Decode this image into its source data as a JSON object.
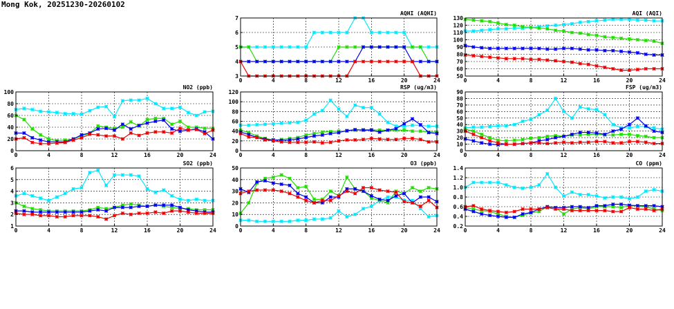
{
  "page": {
    "title": "Mong Kok, 20251230-20260102"
  },
  "colors": {
    "cyan": "#00e8ff",
    "green": "#22dd00",
    "blue": "#0000ee",
    "red": "#ee0000"
  },
  "chart_data": [
    {
      "id": "aqhi",
      "type": "line",
      "title": "AQHI (AQHI)",
      "xticks": [
        "0",
        "4",
        "8",
        "12",
        "16",
        "20",
        "24"
      ],
      "xlim": [
        0,
        24
      ],
      "yticks": [
        "3",
        "4",
        "5",
        "6",
        "7"
      ],
      "ylim": [
        3,
        7
      ],
      "grid": true,
      "series": [
        {
          "color": "cyan",
          "values": [
            5,
            5,
            5,
            5,
            5,
            5,
            5,
            5,
            5,
            6,
            6,
            6,
            6,
            6,
            7,
            7,
            6,
            6,
            6,
            6,
            6,
            5,
            5,
            5,
            5
          ]
        },
        {
          "color": "green",
          "values": [
            5,
            5,
            4,
            4,
            4,
            4,
            4,
            4,
            4,
            4,
            4,
            4,
            5,
            5,
            5,
            5,
            5,
            5,
            5,
            5,
            5,
            5,
            5,
            4,
            4
          ]
        },
        {
          "color": "blue",
          "values": [
            4,
            4,
            4,
            4,
            4,
            4,
            4,
            4,
            4,
            4,
            4,
            4,
            4,
            4,
            4,
            5,
            5,
            5,
            5,
            5,
            5,
            4,
            4,
            4,
            4
          ]
        },
        {
          "color": "red",
          "values": [
            4,
            3,
            3,
            3,
            3,
            3,
            3,
            3,
            3,
            3,
            3,
            3,
            3,
            3,
            4,
            4,
            4,
            4,
            4,
            4,
            4,
            4,
            3,
            3,
            3
          ]
        }
      ]
    },
    {
      "id": "aqi",
      "type": "line",
      "title": "AQI (AQI)",
      "xticks": [
        "0",
        "4",
        "8",
        "12",
        "16",
        "20",
        "24"
      ],
      "xlim": [
        0,
        24
      ],
      "yticks": [
        "50",
        "60",
        "70",
        "80",
        "90",
        "100",
        "110",
        "120",
        "130"
      ],
      "ylim": [
        50,
        130
      ],
      "grid": true,
      "series": [
        {
          "color": "cyan",
          "values": [
            112,
            112,
            113,
            114,
            115,
            115,
            116,
            116,
            117,
            118,
            119,
            120,
            121,
            122,
            124,
            125,
            126,
            127,
            128,
            128,
            128,
            127,
            127,
            126,
            126
          ]
        },
        {
          "color": "green",
          "values": [
            128,
            127,
            126,
            125,
            123,
            121,
            120,
            118,
            117,
            116,
            115,
            113,
            112,
            110,
            109,
            107,
            106,
            104,
            103,
            102,
            101,
            100,
            99,
            98,
            95
          ]
        },
        {
          "color": "blue",
          "values": [
            92,
            90,
            89,
            88,
            88,
            88,
            88,
            88,
            88,
            88,
            87,
            87,
            88,
            88,
            87,
            86,
            86,
            85,
            85,
            84,
            83,
            82,
            80,
            79,
            79
          ]
        },
        {
          "color": "red",
          "values": [
            79,
            78,
            77,
            76,
            75,
            74,
            74,
            74,
            73,
            73,
            72,
            71,
            70,
            69,
            67,
            66,
            64,
            62,
            60,
            58,
            58,
            59,
            60,
            60,
            60
          ]
        }
      ]
    },
    {
      "id": "no2",
      "type": "line",
      "title": "NO2 (ppb)",
      "xticks": [
        "0",
        "4",
        "8",
        "12",
        "16",
        "20",
        "24"
      ],
      "xlim": [
        0,
        24
      ],
      "yticks": [
        "0",
        "20",
        "40",
        "60",
        "80",
        "100"
      ],
      "ylim": [
        0,
        100
      ],
      "grid": true,
      "series": [
        {
          "color": "cyan",
          "values": [
            70,
            72,
            70,
            67,
            66,
            65,
            63,
            63,
            62,
            68,
            74,
            75,
            58,
            85,
            86,
            86,
            89,
            80,
            72,
            72,
            74,
            65,
            60,
            66,
            67
          ]
        },
        {
          "color": "green",
          "values": [
            60,
            53,
            37,
            27,
            20,
            17,
            18,
            20,
            25,
            30,
            42,
            40,
            38,
            40,
            49,
            42,
            53,
            55,
            55,
            45,
            50,
            40,
            40,
            38,
            38
          ]
        },
        {
          "color": "blue",
          "values": [
            30,
            30,
            22,
            18,
            15,
            15,
            15,
            20,
            27,
            30,
            37,
            38,
            35,
            45,
            37,
            43,
            47,
            50,
            52,
            37,
            33,
            35,
            37,
            32,
            20
          ]
        },
        {
          "color": "red",
          "values": [
            20,
            22,
            14,
            12,
            12,
            13,
            14,
            18,
            22,
            28,
            27,
            25,
            25,
            20,
            30,
            26,
            30,
            32,
            32,
            30,
            38,
            35,
            36,
            29,
            35
          ]
        }
      ]
    },
    {
      "id": "rsp",
      "type": "line",
      "title": "RSP (ug/m3)",
      "xticks": [
        "0",
        "4",
        "8",
        "12",
        "16",
        "20",
        "24"
      ],
      "xlim": [
        0,
        24
      ],
      "yticks": [
        "0",
        "20",
        "40",
        "60",
        "80",
        "100",
        "120"
      ],
      "ylim": [
        0,
        120
      ],
      "grid": true,
      "series": [
        {
          "color": "cyan",
          "values": [
            52,
            52,
            53,
            54,
            55,
            56,
            57,
            58,
            62,
            75,
            82,
            103,
            85,
            70,
            93,
            88,
            88,
            75,
            58,
            50,
            50,
            52,
            52,
            50,
            50
          ]
        },
        {
          "color": "green",
          "values": [
            42,
            37,
            30,
            25,
            22,
            23,
            25,
            27,
            32,
            35,
            38,
            39,
            40,
            40,
            42,
            43,
            43,
            42,
            42,
            42,
            42,
            40,
            40,
            38,
            38
          ]
        },
        {
          "color": "blue",
          "values": [
            38,
            33,
            27,
            24,
            22,
            21,
            22,
            24,
            27,
            30,
            32,
            35,
            37,
            41,
            43,
            42,
            42,
            38,
            42,
            45,
            55,
            65,
            53,
            37,
            35
          ]
        },
        {
          "color": "red",
          "values": [
            35,
            28,
            27,
            22,
            20,
            18,
            17,
            17,
            17,
            18,
            16,
            17,
            20,
            22,
            22,
            23,
            25,
            24,
            23,
            23,
            25,
            25,
            23,
            18,
            18
          ]
        }
      ]
    },
    {
      "id": "fsp",
      "type": "line",
      "title": "FSP (ug/m3)",
      "xticks": [
        "0",
        "4",
        "8",
        "12",
        "16",
        "20",
        "24"
      ],
      "xlim": [
        0,
        24
      ],
      "yticks": [
        "0",
        "10",
        "20",
        "30",
        "40",
        "50",
        "60",
        "70",
        "80",
        "90"
      ],
      "ylim": [
        0,
        90
      ],
      "grid": true,
      "series": [
        {
          "color": "cyan",
          "values": [
            35,
            36,
            36,
            37,
            38,
            38,
            40,
            45,
            48,
            55,
            62,
            80,
            60,
            50,
            67,
            64,
            63,
            55,
            40,
            35,
            35,
            37,
            37,
            35,
            33
          ]
        },
        {
          "color": "green",
          "values": [
            33,
            30,
            25,
            20,
            16,
            15,
            16,
            17,
            19,
            20,
            22,
            23,
            22,
            24,
            24,
            25,
            25,
            24,
            24,
            25,
            25,
            23,
            22,
            20,
            20
          ]
        },
        {
          "color": "blue",
          "values": [
            18,
            15,
            12,
            10,
            9,
            10,
            10,
            11,
            12,
            15,
            17,
            20,
            22,
            25,
            28,
            28,
            27,
            25,
            30,
            33,
            40,
            50,
            38,
            30,
            28
          ]
        },
        {
          "color": "red",
          "values": [
            30,
            25,
            20,
            15,
            12,
            10,
            10,
            11,
            12,
            12,
            11,
            12,
            13,
            12,
            13,
            13,
            14,
            14,
            12,
            12,
            14,
            14,
            13,
            11,
            11
          ]
        }
      ]
    },
    {
      "id": "so2",
      "type": "line",
      "title": "SO2 (ppb)",
      "xticks": [
        "0",
        "4",
        "8",
        "12",
        "16",
        "20",
        "24"
      ],
      "xlim": [
        0,
        24
      ],
      "yticks": [
        "1",
        "2",
        "3",
        "4",
        "5",
        "6"
      ],
      "ylim": [
        1,
        6
      ],
      "grid": true,
      "series": [
        {
          "color": "cyan",
          "values": [
            3.6,
            3.8,
            3.6,
            3.4,
            3.2,
            3.5,
            3.8,
            4.2,
            4.3,
            5.6,
            5.8,
            4.5,
            5.4,
            5.4,
            5.4,
            5.3,
            4.2,
            3.9,
            4.1,
            3.6,
            3.3,
            3.2,
            3.3,
            3.2,
            3.2
          ]
        },
        {
          "color": "green",
          "values": [
            3.0,
            2.7,
            2.5,
            2.4,
            2.3,
            2.3,
            2.3,
            2.3,
            2.3,
            2.4,
            2.6,
            2.5,
            2.6,
            2.8,
            2.9,
            2.8,
            2.7,
            2.8,
            2.7,
            2.6,
            2.5,
            2.5,
            2.4,
            2.4,
            2.4
          ]
        },
        {
          "color": "blue",
          "values": [
            2.3,
            2.3,
            2.2,
            2.2,
            2.2,
            2.2,
            2.2,
            2.2,
            2.2,
            2.3,
            2.4,
            2.3,
            2.6,
            2.6,
            2.6,
            2.7,
            2.7,
            2.8,
            2.8,
            2.8,
            2.6,
            2.4,
            2.3,
            2.2,
            2.2
          ]
        },
        {
          "color": "red",
          "values": [
            2.1,
            2.0,
            2.0,
            1.9,
            1.9,
            1.8,
            1.8,
            1.9,
            1.9,
            1.9,
            1.8,
            1.6,
            1.9,
            2.1,
            2.0,
            2.1,
            2.1,
            2.2,
            2.1,
            2.3,
            2.3,
            2.2,
            2.1,
            2.1,
            2.1
          ]
        }
      ]
    },
    {
      "id": "o3",
      "type": "line",
      "title": "O3 (ppb)",
      "xticks": [
        "0",
        "4",
        "8",
        "12",
        "16",
        "20",
        "24"
      ],
      "xlim": [
        0,
        24
      ],
      "yticks": [
        "0",
        "10",
        "20",
        "30",
        "40",
        "50"
      ],
      "ylim": [
        0,
        50
      ],
      "grid": true,
      "series": [
        {
          "color": "cyan",
          "values": [
            5,
            5,
            4,
            4,
            4,
            4,
            4,
            5,
            5,
            6,
            6,
            7,
            13,
            8,
            10,
            15,
            17,
            22,
            25,
            25,
            22,
            22,
            15,
            8,
            9
          ]
        },
        {
          "color": "green",
          "values": [
            11,
            20,
            37,
            41,
            42,
            44,
            41,
            33,
            34,
            23,
            23,
            30,
            26,
            42,
            32,
            30,
            24,
            22,
            20,
            30,
            28,
            33,
            30,
            33,
            32
          ]
        },
        {
          "color": "blue",
          "values": [
            32,
            29,
            38,
            39,
            37,
            36,
            35,
            28,
            25,
            20,
            20,
            25,
            25,
            32,
            32,
            30,
            26,
            23,
            22,
            26,
            28,
            20,
            25,
            25,
            21
          ]
        },
        {
          "color": "red",
          "values": [
            28,
            30,
            31,
            31,
            31,
            30,
            28,
            25,
            22,
            20,
            22,
            22,
            26,
            30,
            28,
            33,
            33,
            31,
            30,
            29,
            21,
            20,
            17,
            22,
            16
          ]
        }
      ]
    },
    {
      "id": "co",
      "type": "line",
      "title": "CO (ppm)",
      "xticks": [
        "0",
        "4",
        "8",
        "12",
        "16",
        "20",
        "24"
      ],
      "xlim": [
        0,
        24
      ],
      "yticks": [
        "0.2",
        "0.4",
        "0.6",
        "0.8",
        "1.0",
        "1.2",
        "1.4"
      ],
      "ylim": [
        0.2,
        1.4
      ],
      "grid": true,
      "series": [
        {
          "color": "cyan",
          "values": [
            1.0,
            1.1,
            1.1,
            1.1,
            1.1,
            1.05,
            1.0,
            0.98,
            1.0,
            1.05,
            1.28,
            1.0,
            0.82,
            0.9,
            0.85,
            0.85,
            0.82,
            0.78,
            0.8,
            0.8,
            0.76,
            0.8,
            0.92,
            0.95,
            0.92
          ]
        },
        {
          "color": "green",
          "values": [
            0.58,
            0.55,
            0.52,
            0.5,
            0.45,
            0.4,
            0.38,
            0.42,
            0.47,
            0.5,
            0.6,
            0.58,
            0.45,
            0.55,
            0.58,
            0.55,
            0.6,
            0.6,
            0.6,
            0.58,
            0.62,
            0.62,
            0.6,
            0.55,
            0.52
          ]
        },
        {
          "color": "blue",
          "values": [
            0.55,
            0.5,
            0.45,
            0.42,
            0.4,
            0.38,
            0.38,
            0.45,
            0.48,
            0.55,
            0.6,
            0.58,
            0.58,
            0.6,
            0.6,
            0.58,
            0.62,
            0.62,
            0.65,
            0.65,
            0.63,
            0.62,
            0.62,
            0.62,
            0.6
          ]
        },
        {
          "color": "red",
          "values": [
            0.6,
            0.62,
            0.55,
            0.52,
            0.5,
            0.48,
            0.5,
            0.55,
            0.55,
            0.55,
            0.58,
            0.55,
            0.55,
            0.52,
            0.52,
            0.52,
            0.52,
            0.52,
            0.5,
            0.5,
            0.58,
            0.55,
            0.55,
            0.52,
            0.55
          ]
        }
      ]
    }
  ]
}
